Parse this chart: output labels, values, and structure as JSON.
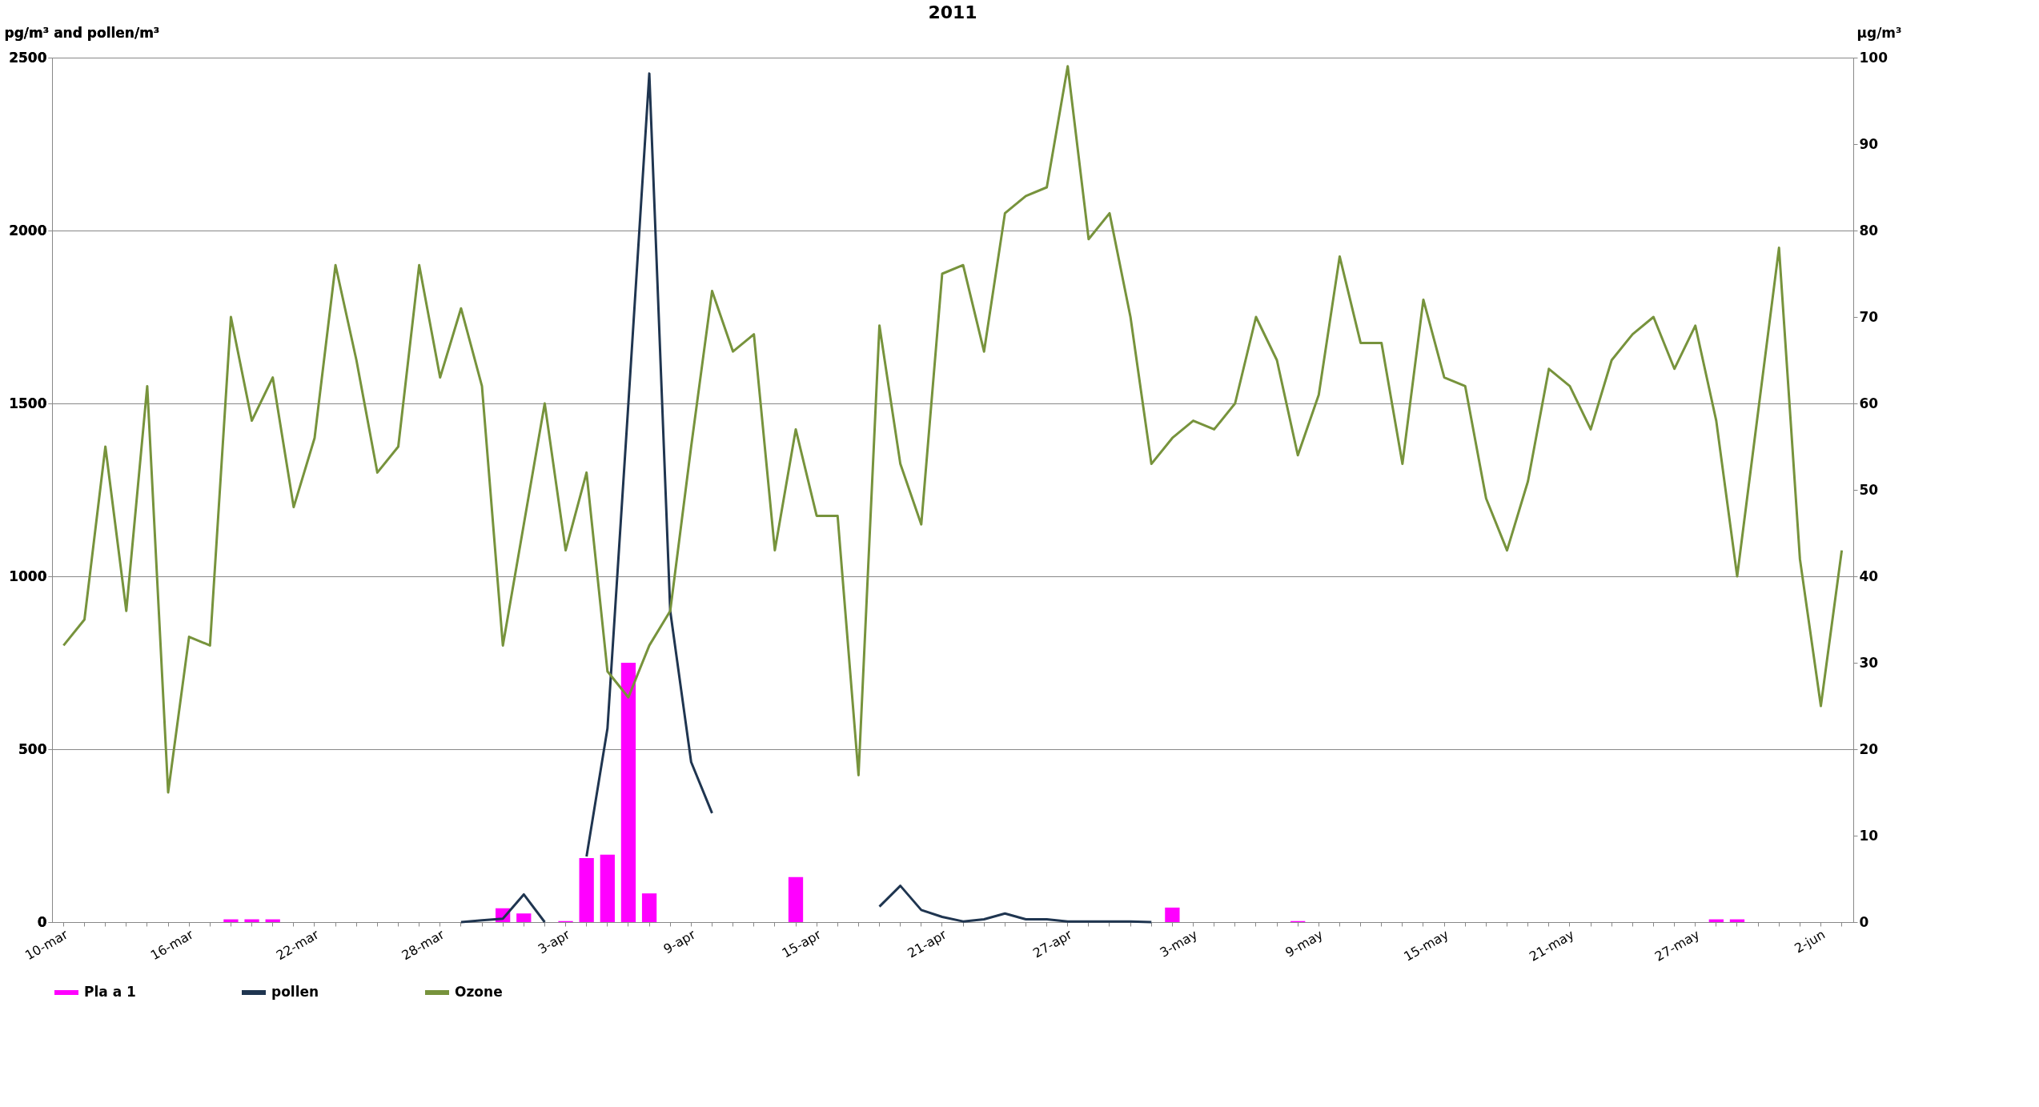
{
  "chart_data": {
    "type": "line",
    "title": "2011",
    "ylabel": "pg/m³ and pollen/m³",
    "y2label": "µg/m³",
    "categories": [
      "10-mar",
      null,
      null,
      null,
      null,
      null,
      "16-mar",
      null,
      null,
      null,
      null,
      null,
      "22-mar",
      null,
      null,
      null,
      null,
      null,
      "28-mar",
      null,
      null,
      null,
      null,
      null,
      "3-apr",
      null,
      null,
      null,
      null,
      null,
      "9-apr",
      null,
      null,
      null,
      null,
      null,
      "15-apr",
      null,
      null,
      null,
      null,
      null,
      "21-apr",
      null,
      null,
      null,
      null,
      null,
      "27-apr",
      null,
      null,
      null,
      null,
      null,
      "3-may",
      null,
      null,
      null,
      null,
      null,
      "9-may",
      null,
      null,
      null,
      null,
      null,
      "15-may",
      null,
      null,
      null,
      null,
      null,
      "21-may",
      null,
      null,
      null,
      null,
      null,
      "27-may",
      null,
      null,
      null,
      null,
      null,
      "2-jun",
      null
    ],
    "ylim": [
      0,
      2500
    ],
    "yticks": [
      0,
      500,
      1000,
      1500,
      2000,
      2500
    ],
    "y2lim": [
      0,
      100
    ],
    "y2ticks": [
      0,
      10,
      20,
      30,
      40,
      50,
      60,
      70,
      80,
      90,
      100
    ],
    "grid": "y",
    "legend": "bottom",
    "series": [
      {
        "name": "Pla a 1",
        "type": "bar",
        "color": "#ff00ff",
        "values": [
          null,
          null,
          null,
          null,
          null,
          null,
          null,
          null,
          8,
          8,
          8,
          null,
          null,
          null,
          null,
          null,
          null,
          null,
          null,
          null,
          null,
          40,
          25,
          null,
          3,
          185,
          195,
          750,
          83,
          null,
          null,
          null,
          null,
          null,
          null,
          130,
          null,
          null,
          null,
          null,
          null,
          null,
          null,
          null,
          null,
          null,
          null,
          null,
          null,
          null,
          null,
          null,
          null,
          42,
          null,
          null,
          null,
          null,
          null,
          3,
          null,
          null,
          null,
          null,
          null,
          null,
          null,
          null,
          null,
          null,
          null,
          null,
          null,
          null,
          null,
          null,
          null,
          null,
          null,
          8,
          8,
          null,
          null,
          null,
          null,
          null
        ]
      },
      {
        "name": "pollen",
        "color": "#1f3550",
        "values": [
          null,
          null,
          null,
          null,
          null,
          null,
          null,
          null,
          null,
          null,
          null,
          null,
          null,
          null,
          null,
          null,
          null,
          null,
          null,
          0,
          5,
          10,
          80,
          0,
          null,
          190,
          560,
          1500,
          2454,
          900,
          463,
          315,
          null,
          null,
          null,
          null,
          null,
          null,
          null,
          45,
          105,
          35,
          15,
          2,
          8,
          25,
          8,
          8,
          2,
          2,
          2,
          2,
          0,
          null,
          null,
          null,
          null,
          null,
          null,
          null,
          null,
          null,
          null,
          null,
          null,
          null,
          null,
          null,
          null,
          null,
          null,
          null,
          null,
          null,
          null,
          null,
          null,
          null,
          null,
          null,
          null,
          null,
          null,
          null,
          null,
          null
        ]
      },
      {
        "name": "Ozone",
        "axis": "y2",
        "color": "#77933c",
        "values": [
          32,
          35,
          55,
          36,
          62,
          15,
          33,
          32,
          70,
          58,
          63,
          48,
          56,
          76,
          65,
          52,
          55,
          76,
          63,
          71,
          62,
          32,
          46,
          60,
          43,
          52,
          29,
          26,
          32,
          36,
          55,
          73,
          66,
          68,
          43,
          57,
          47,
          47,
          17,
          69,
          53,
          46,
          75,
          76,
          66,
          82,
          84,
          85,
          99,
          79,
          82,
          70,
          53,
          56,
          58,
          57,
          60,
          70,
          65,
          54,
          61,
          77,
          67,
          67,
          53,
          72,
          63,
          62,
          49,
          43,
          51,
          64,
          62,
          57,
          65,
          68,
          70,
          64,
          69,
          58,
          40,
          59,
          78,
          42,
          25,
          43
        ]
      }
    ]
  }
}
